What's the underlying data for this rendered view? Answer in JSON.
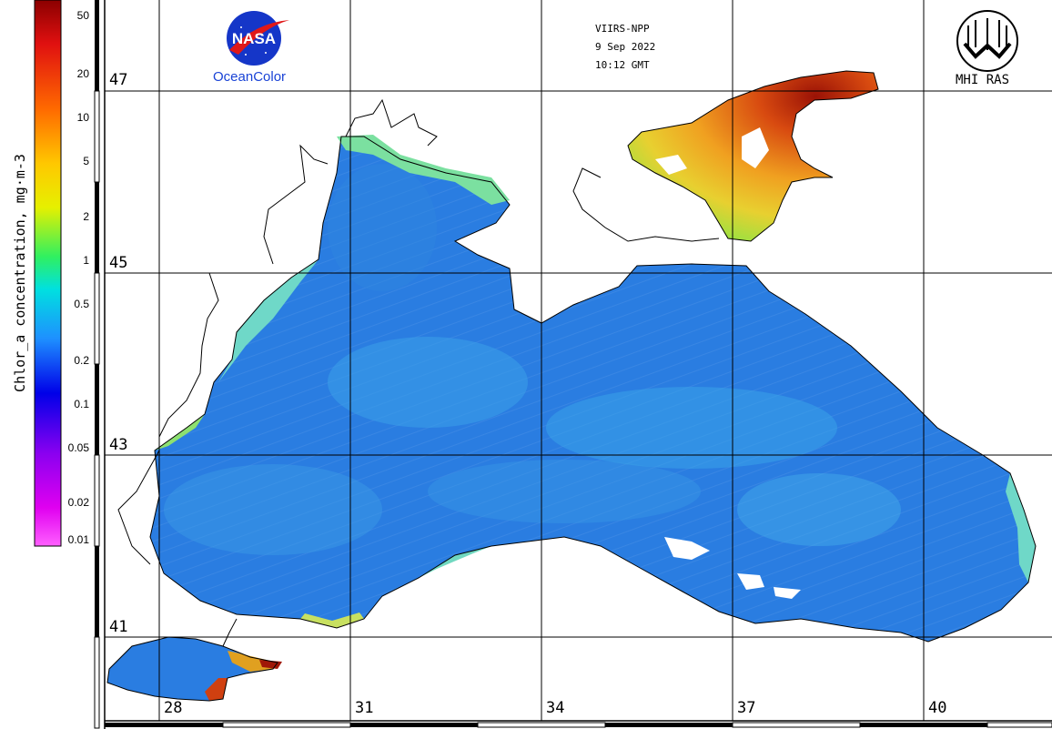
{
  "header": {
    "satellite": "VIIRS-NPP",
    "date": "9 Sep 2022",
    "time": "10:12 GMT"
  },
  "logos": {
    "left_caption": "OceanColor",
    "left_emblem": "NASA",
    "right_caption": "MHI RAS"
  },
  "colorbar": {
    "title": "Chlor_a concentration, mg·m-3",
    "ticks": [
      "50",
      "20",
      "10",
      "5",
      "2",
      "1",
      "0.5",
      "0.2",
      "0.1",
      "0.05",
      "0.02",
      "0.01"
    ],
    "scale": "log",
    "range": [
      0.01,
      60
    ]
  },
  "map": {
    "lat_labels": [
      "47",
      "45",
      "43",
      "41"
    ],
    "lon_labels": [
      "28",
      "31",
      "34",
      "37",
      "40"
    ],
    "colors": {
      "sea_base": "#2a7de1",
      "sea_light": "#3aa3e8",
      "coastal": "#6ee0c8",
      "high": "#e8a820",
      "very_high": "#b81e08",
      "land": "#ffffff",
      "grid": "#000000"
    }
  }
}
